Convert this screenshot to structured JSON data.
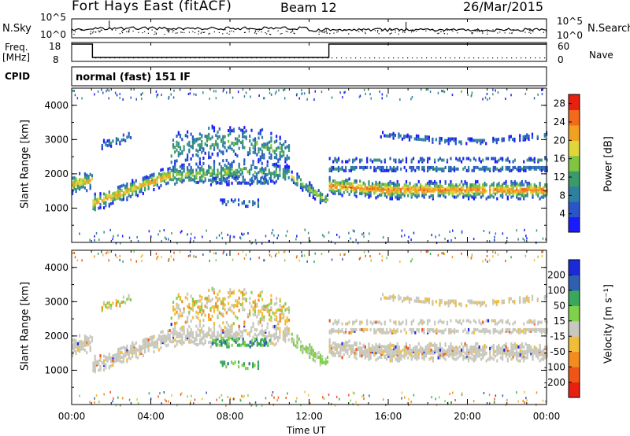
{
  "header": {
    "title": "Fort Hays East (fitACF)",
    "beam": "Beam 12",
    "date": "26/Mar/2015"
  },
  "top_panels": {
    "nsky_label": "N.Sky",
    "nsearch_label": "N.Search",
    "noise_ticks_left": [
      "10^5",
      "10^0"
    ],
    "noise_ticks_right": [
      "10^5",
      "10^0"
    ],
    "freq_label": "Freq.",
    "freq_unit": "[MHz]",
    "freq_ticks": [
      "18",
      "8"
    ],
    "nave_label": "Nave",
    "nave_ticks": [
      "60",
      "0"
    ],
    "cpid_label": "CPID",
    "cpid_text": "normal (fast) 151 IF"
  },
  "colors": {
    "power_scale": [
      "#1a1aff",
      "#2a55c8",
      "#2e7fa0",
      "#3a9a6a",
      "#7fc542",
      "#e0d63a",
      "#f2a020",
      "#f36a1a",
      "#e82010"
    ],
    "velocity_scale": [
      "#e82010",
      "#f05518",
      "#f28c1e",
      "#f0be38",
      "#c8c8be",
      "#7fd04a",
      "#3aa85a",
      "#2e5fb0",
      "#1a2ad8"
    ]
  },
  "chart_data": [
    {
      "type": "heatmap",
      "title": "Power",
      "xlabel": "Time UT",
      "ylabel": "Slant Range [km]",
      "x_ticks": [
        "00:00",
        "04:00",
        "08:00",
        "12:00",
        "16:00",
        "20:00",
        "00:00"
      ],
      "y_ticks": [
        "1000",
        "2000",
        "3000",
        "4000"
      ],
      "ylim": [
        0,
        4500
      ],
      "colorbar_label": "Power [dB]",
      "colorbar_ticks": [
        "4",
        "8",
        "12",
        "16",
        "20",
        "24",
        "28"
      ],
      "colorbar_range": [
        0,
        30
      ]
    },
    {
      "type": "heatmap",
      "title": "Velocity",
      "xlabel": "Time UT",
      "ylabel": "Slant Range [km]",
      "x_ticks": [
        "00:00",
        "04:00",
        "08:00",
        "12:00",
        "16:00",
        "20:00",
        "00:00"
      ],
      "y_ticks": [
        "1000",
        "2000",
        "3000",
        "4000"
      ],
      "ylim": [
        0,
        4500
      ],
      "colorbar_label": "Velocity [m s⁻¹]",
      "colorbar_ticks": [
        "200",
        "100",
        "50",
        "15",
        "-15",
        "-50",
        "-100",
        "-200"
      ]
    }
  ]
}
